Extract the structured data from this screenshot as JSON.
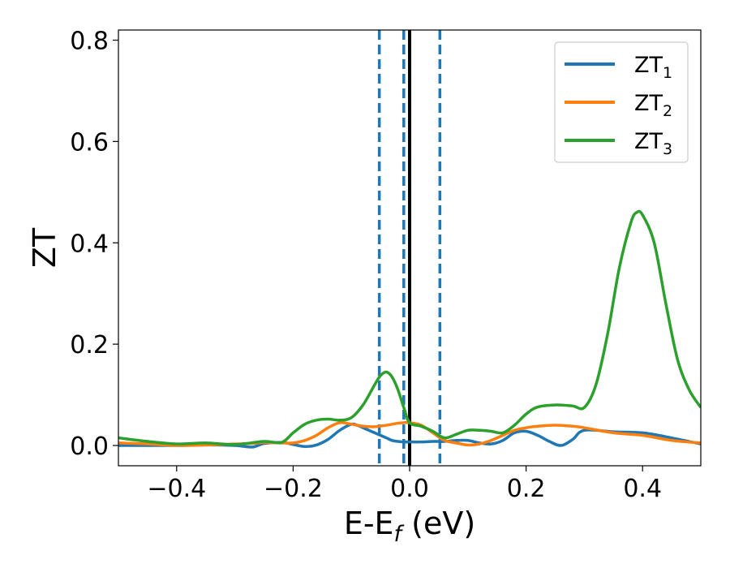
{
  "chart_data": {
    "type": "line",
    "xlabel": "E-E",
    "xlabel_sub": "f",
    "xlabel_unit": " (eV)",
    "ylabel": "ZT",
    "xlim": [
      -0.5,
      0.5
    ],
    "ylim": [
      -0.04,
      0.82
    ],
    "x_ticks": [
      -0.4,
      -0.2,
      0.0,
      0.2,
      0.4
    ],
    "x_tick_labels": [
      "−0.4",
      "−0.2",
      "0.0",
      "0.2",
      "0.4"
    ],
    "y_ticks": [
      0.0,
      0.2,
      0.4,
      0.6,
      0.8
    ],
    "y_tick_labels": [
      "0.0",
      "0.2",
      "0.4",
      "0.6",
      "0.8"
    ],
    "grid": false,
    "legend_position": "top-right",
    "vertical_lines": [
      {
        "x": -0.052,
        "style": "dashed",
        "color": "#1f77b4"
      },
      {
        "x": -0.01,
        "style": "dashed",
        "color": "#1f77b4"
      },
      {
        "x": 0.0,
        "style": "solid",
        "color": "#000000"
      },
      {
        "x": 0.052,
        "style": "dashed",
        "color": "#1f77b4"
      }
    ],
    "series": [
      {
        "name": "ZT",
        "name_sub": "1",
        "color": "#1f77b4",
        "x": [
          -0.5,
          -0.45,
          -0.4,
          -0.35,
          -0.3,
          -0.27,
          -0.25,
          -0.22,
          -0.2,
          -0.18,
          -0.16,
          -0.14,
          -0.12,
          -0.1,
          -0.09,
          -0.08,
          -0.07,
          -0.06,
          -0.05,
          -0.04,
          -0.03,
          -0.02,
          -0.01,
          0.0,
          0.02,
          0.04,
          0.06,
          0.08,
          0.1,
          0.12,
          0.14,
          0.16,
          0.18,
          0.2,
          0.22,
          0.24,
          0.26,
          0.28,
          0.3,
          0.35,
          0.4,
          0.45,
          0.5
        ],
        "y": [
          0.0,
          0.0,
          0.0,
          0.001,
          0.0,
          -0.003,
          0.004,
          0.006,
          0.002,
          -0.002,
          0.001,
          0.012,
          0.03,
          0.042,
          0.04,
          0.035,
          0.03,
          0.025,
          0.02,
          0.015,
          0.01,
          0.008,
          0.007,
          0.007,
          0.007,
          0.008,
          0.008,
          0.01,
          0.01,
          0.005,
          0.003,
          0.01,
          0.025,
          0.028,
          0.02,
          0.008,
          0.0,
          0.012,
          0.03,
          0.027,
          0.025,
          0.015,
          0.003
        ]
      },
      {
        "name": "ZT",
        "name_sub": "2",
        "color": "#ff7f0e",
        "x": [
          -0.5,
          -0.45,
          -0.4,
          -0.35,
          -0.3,
          -0.27,
          -0.25,
          -0.22,
          -0.2,
          -0.18,
          -0.16,
          -0.14,
          -0.12,
          -0.1,
          -0.08,
          -0.06,
          -0.04,
          -0.02,
          -0.01,
          0.0,
          0.02,
          0.04,
          0.06,
          0.08,
          0.1,
          0.12,
          0.14,
          0.16,
          0.18,
          0.2,
          0.22,
          0.25,
          0.28,
          0.3,
          0.35,
          0.4,
          0.45,
          0.5
        ],
        "y": [
          0.005,
          0.003,
          0.0,
          0.001,
          0.003,
          0.004,
          0.006,
          0.005,
          0.005,
          0.01,
          0.02,
          0.035,
          0.045,
          0.042,
          0.038,
          0.037,
          0.04,
          0.044,
          0.045,
          0.045,
          0.04,
          0.025,
          0.01,
          0.005,
          0.001,
          0.003,
          0.01,
          0.02,
          0.03,
          0.035,
          0.038,
          0.04,
          0.038,
          0.035,
          0.025,
          0.02,
          0.01,
          0.005
        ]
      },
      {
        "name": "ZT",
        "name_sub": "3",
        "color": "#2ca02c",
        "x": [
          -0.5,
          -0.45,
          -0.4,
          -0.35,
          -0.3,
          -0.25,
          -0.22,
          -0.2,
          -0.18,
          -0.16,
          -0.14,
          -0.12,
          -0.1,
          -0.08,
          -0.06,
          -0.05,
          -0.04,
          -0.03,
          -0.02,
          -0.01,
          0.0,
          0.02,
          0.04,
          0.06,
          0.08,
          0.1,
          0.12,
          0.14,
          0.16,
          0.18,
          0.2,
          0.22,
          0.25,
          0.28,
          0.3,
          0.32,
          0.34,
          0.36,
          0.38,
          0.39,
          0.4,
          0.42,
          0.44,
          0.46,
          0.48,
          0.5
        ],
        "y": [
          0.015,
          0.008,
          0.003,
          0.005,
          0.002,
          0.008,
          0.006,
          0.025,
          0.042,
          0.05,
          0.052,
          0.05,
          0.055,
          0.08,
          0.12,
          0.138,
          0.145,
          0.135,
          0.11,
          0.075,
          0.045,
          0.038,
          0.028,
          0.015,
          0.022,
          0.03,
          0.03,
          0.028,
          0.025,
          0.04,
          0.062,
          0.076,
          0.08,
          0.078,
          0.075,
          0.12,
          0.22,
          0.35,
          0.44,
          0.46,
          0.455,
          0.4,
          0.28,
          0.17,
          0.11,
          0.075
        ]
      }
    ]
  }
}
